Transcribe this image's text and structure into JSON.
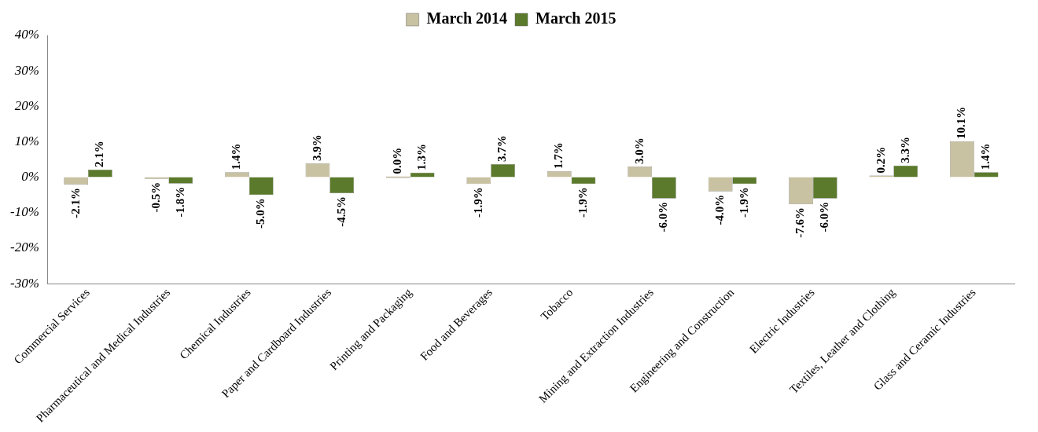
{
  "chart_data": {
    "type": "bar",
    "categories": [
      "Commercial Services",
      "Pharmaceutical and Medical Industries",
      "Chemical Industries",
      "Paper and Cardboard Industries",
      "Printing and Packaging",
      "Food and Beverages",
      "Tobacco",
      "Mining and Extraction Industries",
      "Engineering and Construction",
      "Electric Industries",
      "Textiles, Leather and Clothing",
      "Glass and Ceramic Industries"
    ],
    "series": [
      {
        "name": "March 2014",
        "color": "#c9c2a2",
        "values": [
          -2.1,
          -0.5,
          1.4,
          3.9,
          0.0,
          -1.9,
          1.7,
          3.0,
          -4.0,
          -7.6,
          0.2,
          10.1
        ],
        "value_labels": [
          "-2.1%",
          "-0.5%",
          "1.4%",
          "3.9%",
          "0.0%",
          "-1.9%",
          "1.7%",
          "3.0%",
          "-4.0%",
          "-7.6%",
          "0.2%",
          "10.1%"
        ]
      },
      {
        "name": "March 2015",
        "color": "#5b7a2b",
        "values": [
          2.1,
          -1.8,
          -5.0,
          -4.5,
          1.3,
          3.7,
          -1.9,
          -6.0,
          -1.9,
          -6.0,
          3.3,
          1.4
        ],
        "value_labels": [
          "2.1%",
          "-1.8%",
          "-5.0%",
          "-4.5%",
          "1.3%",
          "3.7%",
          "-1.9%",
          "-6.0%",
          "-1.9%",
          "-6.0%",
          "3.3%",
          "1.4%"
        ]
      }
    ],
    "ylim": [
      -30,
      40
    ],
    "yticks": [
      {
        "value": -30,
        "label": "-30%"
      },
      {
        "value": -20,
        "label": "-20%"
      },
      {
        "value": -10,
        "label": "-10%"
      },
      {
        "value": 0,
        "label": "0%"
      },
      {
        "value": 10,
        "label": "10%"
      },
      {
        "value": 20,
        "label": "20%"
      },
      {
        "value": 30,
        "label": "30%"
      },
      {
        "value": 40,
        "label": "40%"
      }
    ],
    "grid": false,
    "legend": "top"
  }
}
